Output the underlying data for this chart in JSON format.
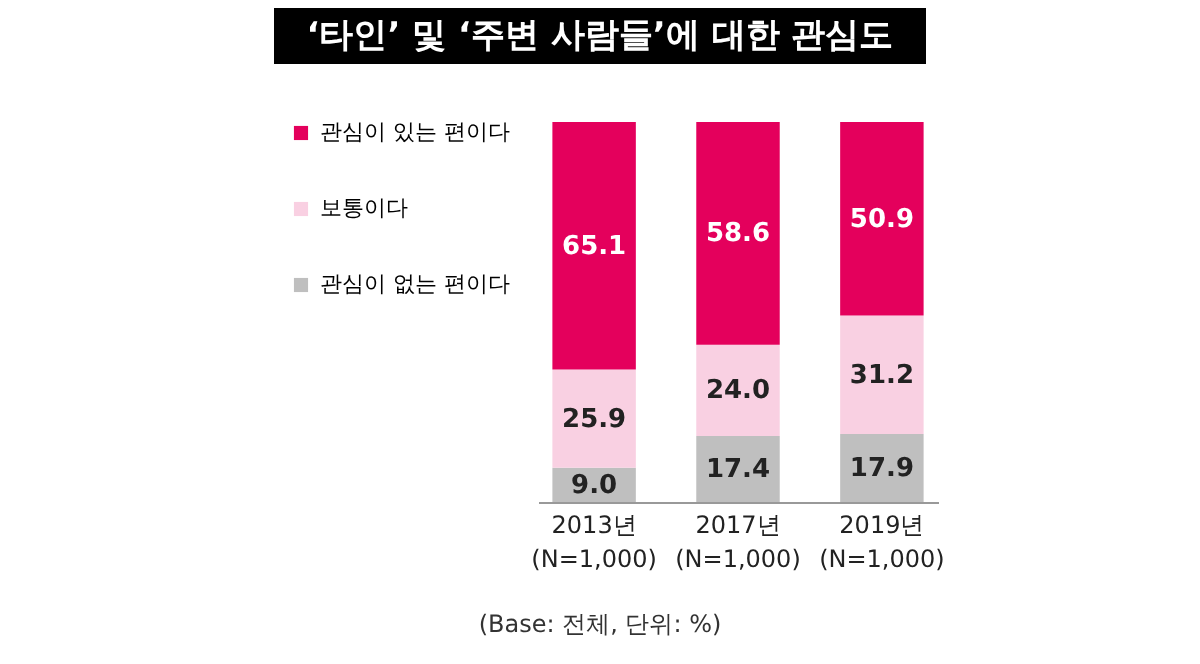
{
  "chart_data": {
    "type": "bar",
    "title": "‘타인’ 및 ‘주변 사람들’에 대한 관심도",
    "stacked": true,
    "legend": "left",
    "grid": false,
    "categories": [
      "2013년\n(N=1,000)",
      "2017년\n(N=1,000)",
      "2019년\n(N=1,000)"
    ],
    "series": [
      {
        "name": "관심이 없는 편이다",
        "color": "#bfbfbf",
        "values": [
          9.0,
          17.4,
          17.9
        ],
        "value_labels": [
          "9.0",
          "17.4",
          "17.9"
        ]
      },
      {
        "name": "보통이다",
        "color": "#f9d0e2",
        "values": [
          25.9,
          24.0,
          31.2
        ],
        "value_labels": [
          "25.9",
          "24.0",
          "31.2"
        ]
      },
      {
        "name": "관심이 있는 편이다",
        "color": "#e4005c",
        "values": [
          65.1,
          58.6,
          50.9
        ],
        "value_labels": [
          "65.1",
          "58.6",
          "50.9"
        ]
      }
    ],
    "annotations": [
      "(Base: 전체, 단위: %)"
    ]
  }
}
